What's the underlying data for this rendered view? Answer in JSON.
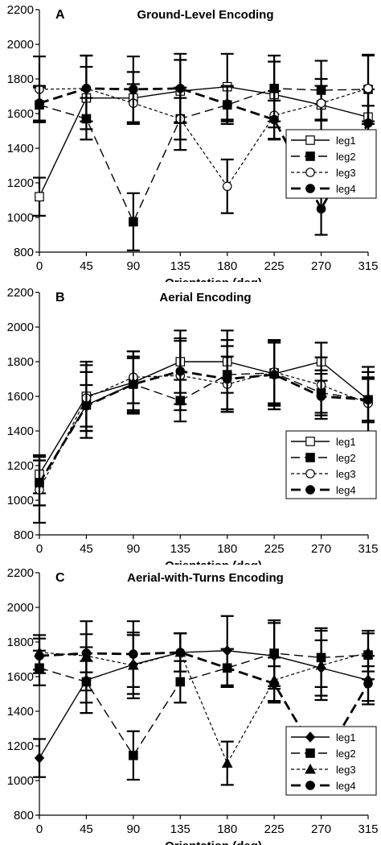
{
  "chart_data": [
    {
      "type": "line",
      "panel_letter": "A",
      "title": "Ground-Level Encoding",
      "xlabel": "Orientation (deg)",
      "ylabel": "",
      "x": [
        0,
        45,
        90,
        135,
        180,
        225,
        270,
        315
      ],
      "x_tick_labels": [
        "0",
        "45",
        "90",
        "135",
        "180",
        "225",
        "270",
        "315"
      ],
      "ylim": [
        800,
        2200
      ],
      "y_ticks": [
        800,
        1000,
        1200,
        1400,
        1600,
        1800,
        2000,
        2200
      ],
      "y_tick_labels": [
        "800",
        "1000",
        "1200",
        "1400",
        "1600",
        "1800",
        "2000",
        "2200"
      ],
      "legend_position": "right",
      "series": [
        {
          "name": "leg1",
          "marker": "square-open",
          "line": "solid",
          "values": [
            1120,
            1690,
            1690,
            1730,
            1755,
            1710,
            1650,
            1580
          ],
          "errors": [
            110,
            180,
            150,
            180,
            190,
            190,
            150,
            160
          ]
        },
        {
          "name": "leg2",
          "marker": "square-filled",
          "line": "long-dash",
          "values": [
            1650,
            1570,
            975,
            1570,
            1650,
            1745,
            1735,
            1740
          ],
          "errors": [
            100,
            120,
            165,
            120,
            110,
            190,
            170,
            200
          ]
        },
        {
          "name": "leg3",
          "marker": "circle-open",
          "line": "short-dash",
          "values": [
            1740,
            1745,
            1660,
            1570,
            1180,
            1590,
            1660,
            1745
          ],
          "errors": [
            190,
            190,
            110,
            180,
            155,
            140,
            100,
            190
          ]
        },
        {
          "name": "leg4",
          "marker": "circle-filled",
          "line": "heavy-dash",
          "values": [
            1660,
            1745,
            1740,
            1745,
            1655,
            1565,
            1050,
            1545
          ],
          "errors": [
            100,
            190,
            190,
            200,
            100,
            110,
            150,
            100
          ]
        }
      ]
    },
    {
      "type": "line",
      "panel_letter": "B",
      "title": "Aerial Encoding",
      "xlabel": "Orientation (deg)",
      "ylabel": "",
      "x": [
        0,
        45,
        90,
        135,
        180,
        225,
        270,
        315
      ],
      "x_tick_labels": [
        "0",
        "45",
        "90",
        "135",
        "180",
        "225",
        "270",
        "315"
      ],
      "ylim": [
        800,
        2200
      ],
      "y_ticks": [
        800,
        1000,
        1200,
        1400,
        1600,
        1800,
        2000,
        2200
      ],
      "y_tick_labels": [
        "800",
        "1000",
        "1200",
        "1400",
        "1600",
        "1800",
        "2000",
        "2200"
      ],
      "legend_position": "bottom-right",
      "series": [
        {
          "name": "leg1",
          "marker": "square-open",
          "line": "solid",
          "values": [
            1150,
            1600,
            1680,
            1800,
            1800,
            1730,
            1800,
            1580
          ],
          "errors": [
            110,
            200,
            180,
            180,
            180,
            180,
            110,
            190
          ]
        },
        {
          "name": "leg2",
          "marker": "square-filled",
          "line": "long-dash",
          "values": [
            1100,
            1550,
            1670,
            1575,
            1725,
            1735,
            1620,
            1580
          ],
          "errors": [
            130,
            190,
            150,
            120,
            200,
            190,
            130,
            120
          ]
        },
        {
          "name": "leg3",
          "marker": "circle-open",
          "line": "short-dash",
          "values": [
            1060,
            1590,
            1710,
            1720,
            1670,
            1740,
            1665,
            1560
          ],
          "errors": [
            190,
            190,
            150,
            200,
            160,
            180,
            160,
            180
          ]
        },
        {
          "name": "leg4",
          "marker": "circle-filled",
          "line": "heavy-dash",
          "values": [
            1100,
            1545,
            1670,
            1745,
            1700,
            1725,
            1600,
            1580
          ],
          "errors": [
            130,
            120,
            160,
            190,
            190,
            200,
            130,
            130
          ]
        }
      ]
    },
    {
      "type": "line",
      "panel_letter": "C",
      "title": "Aerial-with-Turns Encoding",
      "xlabel": "Orientation (deg)",
      "ylabel": "",
      "x": [
        0,
        45,
        90,
        135,
        180,
        225,
        270,
        315
      ],
      "x_tick_labels": [
        "0",
        "45",
        "90",
        "135",
        "180",
        "225",
        "270",
        "315"
      ],
      "ylim": [
        800,
        2200
      ],
      "y_ticks": [
        800,
        1000,
        1200,
        1400,
        1600,
        1800,
        2000,
        2200
      ],
      "y_tick_labels": [
        "800",
        "1000",
        "1200",
        "1400",
        "1600",
        "1800",
        "2000",
        "2200"
      ],
      "legend_position": "bottom-right",
      "series": [
        {
          "name": "leg1",
          "marker": "diamond-filled",
          "line": "solid",
          "values": [
            1130,
            1580,
            1670,
            1740,
            1750,
            1720,
            1650,
            1580
          ],
          "errors": [
            110,
            190,
            170,
            110,
            200,
            190,
            160,
            140
          ]
        },
        {
          "name": "leg2",
          "marker": "square-filled",
          "line": "long-dash",
          "values": [
            1650,
            1570,
            1145,
            1570,
            1650,
            1735,
            1710,
            1725
          ],
          "errors": [
            100,
            120,
            140,
            120,
            110,
            190,
            170,
            140
          ]
        },
        {
          "name": "leg3",
          "marker": "triangle-filled",
          "line": "short-dash",
          "values": [
            1740,
            1720,
            1665,
            1740,
            1100,
            1580,
            1665,
            1740
          ],
          "errors": [
            100,
            200,
            190,
            110,
            125,
            130,
            200,
            110
          ]
        },
        {
          "name": "leg4",
          "marker": "circle-filled",
          "line": "heavy-dash",
          "values": [
            1720,
            1735,
            1730,
            1740,
            1650,
            1560,
            1100,
            1560
          ],
          "errors": [
            100,
            110,
            190,
            110,
            110,
            100,
            110,
            100
          ]
        }
      ]
    }
  ]
}
